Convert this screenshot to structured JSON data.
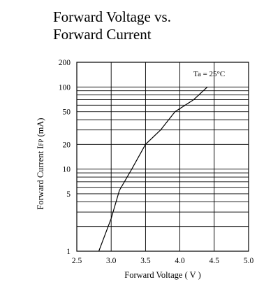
{
  "chart_data": {
    "type": "line",
    "title_lines": [
      "Forward Voltage vs.",
      "Forward Current"
    ],
    "xlabel": "Forward Voltage ( V )",
    "ylabel": "Forward Current IFP (mA)",
    "ylabel_parts": {
      "main": "Forward Current I",
      "sub": "FP",
      "unit": " (mA)"
    },
    "annotation": "Ta = 25°C",
    "x_scale": "linear",
    "y_scale": "log",
    "xlim": [
      2.5,
      5.0
    ],
    "ylim": [
      1,
      200
    ],
    "x_ticks": [
      2.5,
      3.0,
      3.5,
      4.0,
      4.5,
      5.0
    ],
    "x_tick_labels": [
      "2.5",
      "3.0",
      "3.5",
      "4.0",
      "4.5",
      "5.0"
    ],
    "y_tick_labels": [
      {
        "value": 1,
        "label": "1"
      },
      {
        "value": 5,
        "label": "5"
      },
      {
        "value": 10,
        "label": "10"
      },
      {
        "value": 20,
        "label": "20"
      },
      {
        "value": 50,
        "label": "50"
      },
      {
        "value": 100,
        "label": "100"
      },
      {
        "value": 200,
        "label": "200"
      }
    ],
    "y_gridlines": [
      2,
      3,
      4,
      5,
      6,
      7,
      8,
      9,
      10,
      20,
      30,
      40,
      50,
      60,
      70,
      80,
      90,
      100
    ],
    "x_gridlines": [
      3.0,
      3.5,
      4.0,
      4.5
    ],
    "grid": true,
    "legend": "none",
    "series": [
      {
        "x": [
          2.82,
          3.0,
          3.12,
          3.3,
          3.5,
          3.72,
          3.93,
          4.2,
          4.4
        ],
        "y": [
          1,
          2.5,
          5.5,
          10,
          20,
          30,
          50,
          70,
          100
        ]
      }
    ]
  }
}
